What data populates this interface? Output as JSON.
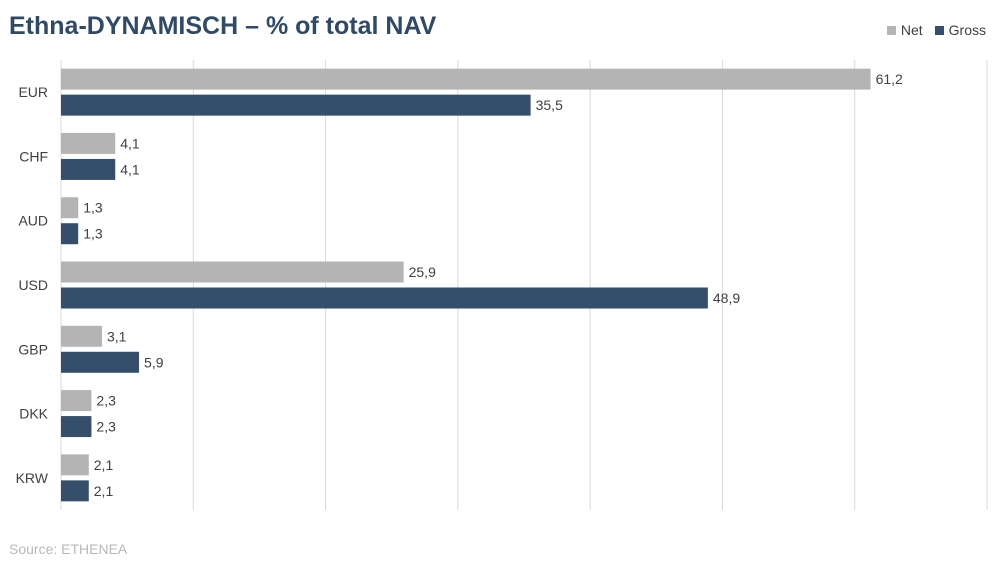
{
  "title": "Ethna-DYNAMISCH – % of total NAV",
  "source": "Source: ETHENEA",
  "colors": {
    "net": "#b4b4b4",
    "gross": "#344e6b",
    "title": "#2f4a66",
    "grid": "#d9d9d9"
  },
  "chart_data": {
    "type": "bar",
    "orientation": "horizontal",
    "title": "Ethna-DYNAMISCH – % of total NAV",
    "categories": [
      "EUR",
      "CHF",
      "AUD",
      "USD",
      "GBP",
      "DKK",
      "KRW"
    ],
    "series": [
      {
        "name": "Net",
        "values": [
          61.2,
          4.1,
          1.3,
          25.9,
          3.1,
          2.3,
          2.1
        ],
        "labels": [
          "61,2",
          "4,1",
          "1,3",
          "25,9",
          "3,1",
          "2,3",
          "2,1"
        ]
      },
      {
        "name": "Gross",
        "values": [
          35.5,
          4.1,
          1.3,
          48.9,
          5.9,
          2.3,
          2.1
        ],
        "labels": [
          "35,5",
          "4,1",
          "1,3",
          "48,9",
          "5,9",
          "2,3",
          "2,1"
        ]
      }
    ],
    "xlim": [
      0,
      70
    ],
    "grid": true,
    "legend_position": "top-right",
    "xlabel": "",
    "ylabel": ""
  }
}
